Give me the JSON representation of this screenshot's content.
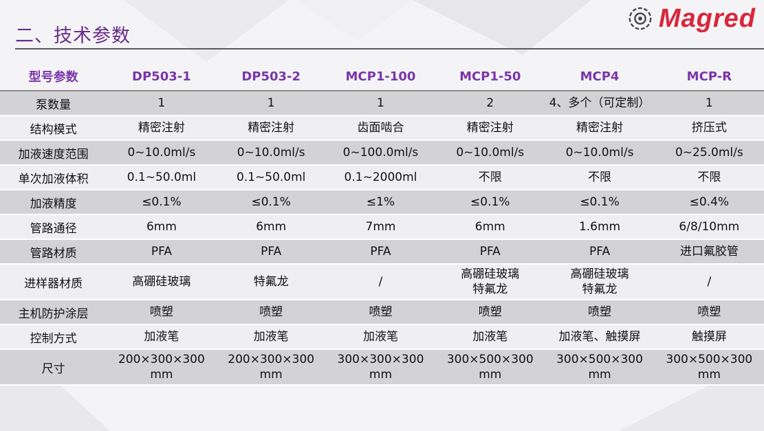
{
  "header": {
    "title": "二、技术参数",
    "logo_text": "Magred",
    "brand_color": "#d9263b",
    "title_color": "#6a2c8a"
  },
  "table": {
    "columns": [
      "型号参数",
      "DP503-1",
      "DP503-2",
      "MCP1-100",
      "MCP1-50",
      "MCP4",
      "MCP-R"
    ],
    "rows": [
      {
        "label": "泵数量",
        "cells": [
          [
            "1"
          ],
          [
            "1"
          ],
          [
            "1"
          ],
          [
            "2"
          ],
          [
            "4、多个（可定制）"
          ],
          [
            "1"
          ]
        ]
      },
      {
        "label": "结构模式",
        "cells": [
          [
            "精密注射"
          ],
          [
            "精密注射"
          ],
          [
            "齿面啮合"
          ],
          [
            "精密注射"
          ],
          [
            "精密注射"
          ],
          [
            "挤压式"
          ]
        ]
      },
      {
        "label": "加液速度范围",
        "cells": [
          [
            "0~10.0ml/s"
          ],
          [
            "0~10.0ml/s"
          ],
          [
            "0~100.0ml/s"
          ],
          [
            "0~10.0ml/s"
          ],
          [
            "0~10.0ml/s"
          ],
          [
            "0~25.0ml/s"
          ]
        ]
      },
      {
        "label": "单次加液体积",
        "cells": [
          [
            "0.1~50.0ml"
          ],
          [
            "0.1~50.0ml"
          ],
          [
            "0.1~2000ml"
          ],
          [
            "不限"
          ],
          [
            "不限"
          ],
          [
            "不限"
          ]
        ]
      },
      {
        "label": "加液精度",
        "cells": [
          [
            "≤0.1%"
          ],
          [
            "≤0.1%"
          ],
          [
            "≤1%"
          ],
          [
            "≤0.1%"
          ],
          [
            "≤0.1%"
          ],
          [
            "≤0.4%"
          ]
        ]
      },
      {
        "label": "管路通径",
        "cells": [
          [
            "6mm"
          ],
          [
            "6mm"
          ],
          [
            "7mm"
          ],
          [
            "6mm"
          ],
          [
            "1.6mm"
          ],
          [
            "6/8/10mm"
          ]
        ]
      },
      {
        "label": "管路材质",
        "cells": [
          [
            "PFA"
          ],
          [
            "PFA"
          ],
          [
            "PFA"
          ],
          [
            "PFA"
          ],
          [
            "PFA"
          ],
          [
            "进口氟胶管"
          ]
        ]
      },
      {
        "label": "进样器材质",
        "cells": [
          [
            "高硼硅玻璃"
          ],
          [
            "特氟龙"
          ],
          [
            "/"
          ],
          [
            "高硼硅玻璃",
            "特氟龙"
          ],
          [
            "高硼硅玻璃",
            "特氟龙"
          ],
          [
            "/"
          ]
        ]
      },
      {
        "label": "主机防护涂层",
        "cells": [
          [
            "喷塑"
          ],
          [
            "喷塑"
          ],
          [
            "喷塑"
          ],
          [
            "喷塑"
          ],
          [
            "喷塑"
          ],
          [
            "喷塑"
          ]
        ]
      },
      {
        "label": "控制方式",
        "cells": [
          [
            "加液笔"
          ],
          [
            "加液笔"
          ],
          [
            "加液笔"
          ],
          [
            "加液笔"
          ],
          [
            "加液笔、触摸屏"
          ],
          [
            "触摸屏"
          ]
        ]
      },
      {
        "label": "尺寸",
        "cells": [
          [
            "200×300×300",
            "mm"
          ],
          [
            "200×300×300",
            "mm"
          ],
          [
            "300×300×300",
            "mm"
          ],
          [
            "300×500×300",
            "mm"
          ],
          [
            "300×500×300",
            "mm"
          ],
          [
            "300×500×300",
            "mm"
          ]
        ]
      }
    ]
  }
}
